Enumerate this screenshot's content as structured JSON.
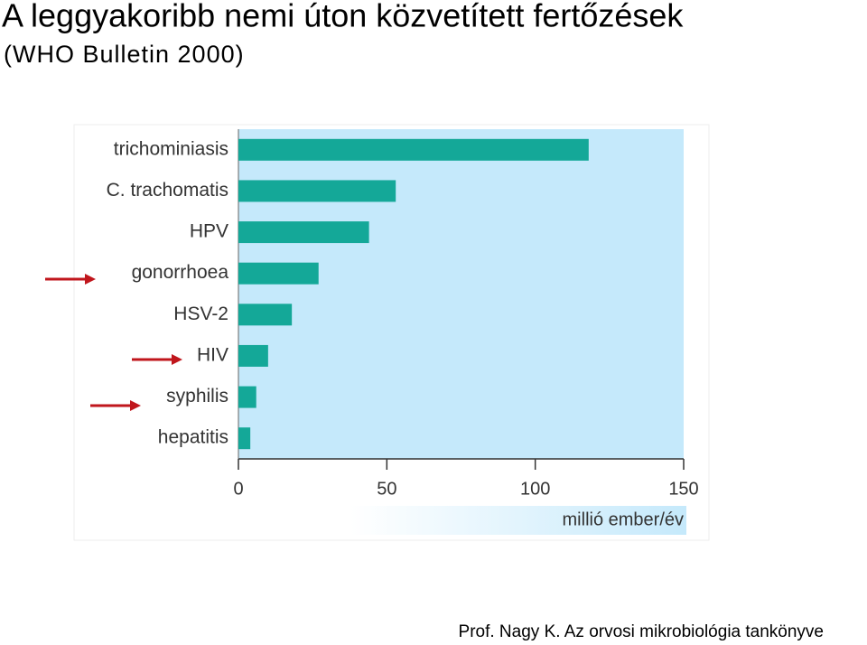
{
  "chart_data": {
    "type": "barh",
    "title": "A leggyakoribb nemi úton közvetített fertőzések",
    "subtitle": "(WHO Bulletin 2000)",
    "source": "Prof. Nagy K. Az orvosi mikrobiológia tankönyve",
    "xlabel": "millió ember/év",
    "categories": [
      "trichominiasis",
      "C. trachomatis",
      "HPV",
      "gonorrhoea",
      "HSV-2",
      "HIV",
      "syphilis",
      "hepatitis"
    ],
    "values": [
      118,
      53,
      44,
      27,
      18,
      10,
      6,
      4
    ],
    "color": "#14a898",
    "xlim": [
      0,
      150
    ],
    "xticks": [
      0,
      50,
      100,
      150
    ]
  }
}
